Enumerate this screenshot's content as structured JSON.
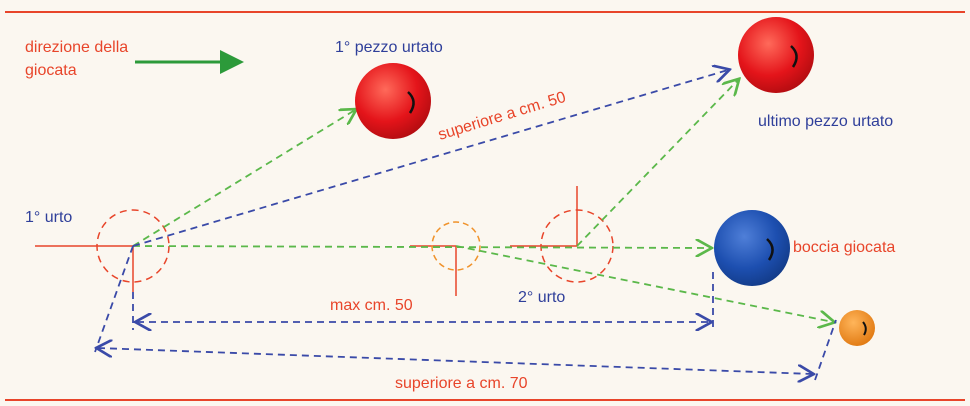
{
  "direction_label": [
    "direzione della",
    "giocata"
  ],
  "labels": {
    "first_piece": "1° pezzo urtato",
    "over_50": "superiore a cm. 50",
    "last_piece": "ultimo pezzo urtato",
    "first_hit": "1° urto",
    "played_ball": "boccia giocata",
    "max_50": "max cm. 50",
    "second_hit": "2° urto",
    "over_70": "superiore a cm. 70"
  }
}
